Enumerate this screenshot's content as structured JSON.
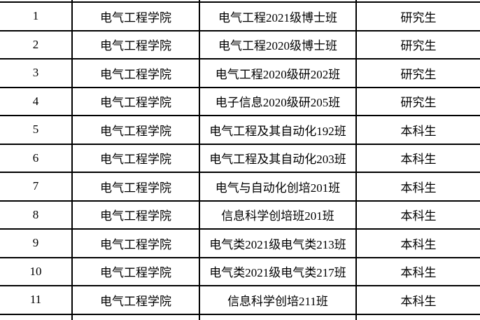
{
  "table": {
    "description": "class-list-table",
    "colors": {
      "border": "#000000",
      "background": "#ffffff",
      "text": "#000000"
    },
    "columns": [
      {
        "name": "row-number"
      },
      {
        "name": "college"
      },
      {
        "name": "class-name"
      },
      {
        "name": "student-type"
      }
    ],
    "rows": [
      {
        "num": "1",
        "college": "电气工程学院",
        "class_name": "电气工程2021级博士班",
        "student_type": "研究生"
      },
      {
        "num": "2",
        "college": "电气工程学院",
        "class_name": "电气工程2020级博士班",
        "student_type": "研究生"
      },
      {
        "num": "3",
        "college": "电气工程学院",
        "class_name": "电气工程2020级研202班",
        "student_type": "研究生"
      },
      {
        "num": "4",
        "college": "电气工程学院",
        "class_name": "电子信息2020级研205班",
        "student_type": "研究生"
      },
      {
        "num": "5",
        "college": "电气工程学院",
        "class_name": "电气工程及其自动化192班",
        "student_type": "本科生"
      },
      {
        "num": "6",
        "college": "电气工程学院",
        "class_name": "电气工程及其自动化203班",
        "student_type": "本科生"
      },
      {
        "num": "7",
        "college": "电气工程学院",
        "class_name": "电气与自动化创培201班",
        "student_type": "本科生"
      },
      {
        "num": "8",
        "college": "电气工程学院",
        "class_name": "信息科学创培班201班",
        "student_type": "本科生"
      },
      {
        "num": "9",
        "college": "电气工程学院",
        "class_name": "电气类2021级电气类213班",
        "student_type": "本科生"
      },
      {
        "num": "10",
        "college": "电气工程学院",
        "class_name": "电气类2021级电气类217班",
        "student_type": "本科生"
      },
      {
        "num": "11",
        "college": "电气工程学院",
        "class_name": "信息科学创培211班",
        "student_type": "本科生"
      }
    ]
  }
}
